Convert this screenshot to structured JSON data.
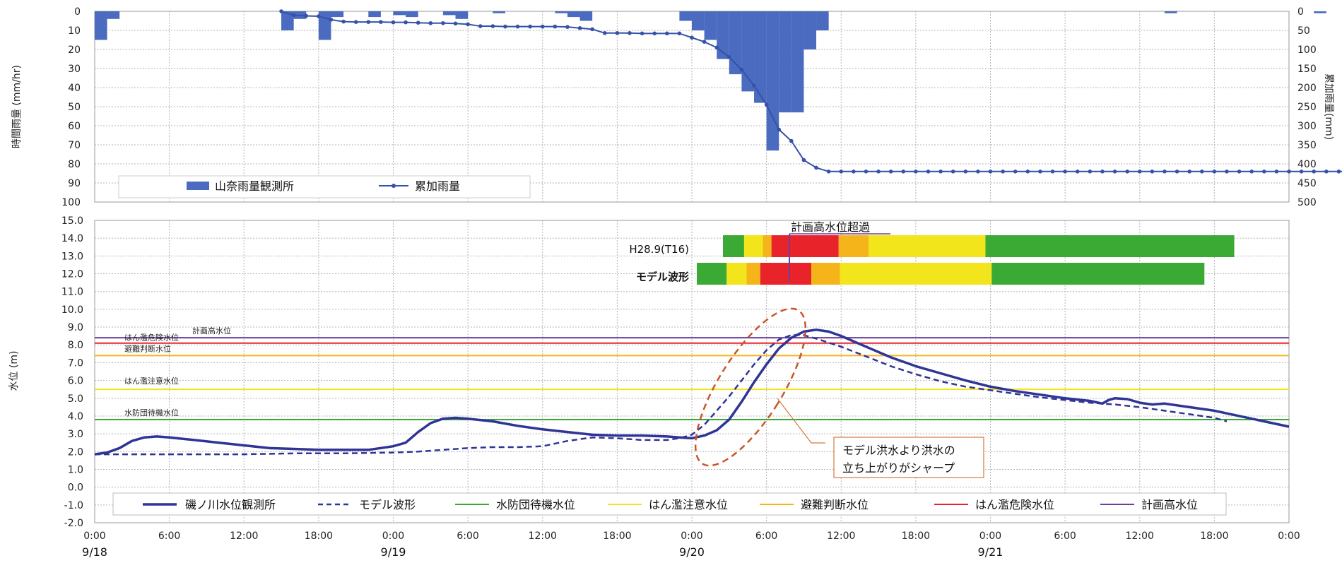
{
  "chart_data": [
    {
      "type": "bar",
      "ylabel_left": "時間雨量 (mm/hr)",
      "ylabel_right": "累加雨量(mm)",
      "ylim_left": [
        0,
        100
      ],
      "ylim_right": [
        0,
        500
      ],
      "y_inverted": true,
      "yticks_left": [
        "0",
        "10",
        "20",
        "30",
        "40",
        "50",
        "60",
        "70",
        "80",
        "90",
        "100"
      ],
      "yticks_right": [
        "0",
        "50",
        "100",
        "150",
        "200",
        "250",
        "300",
        "350",
        "400",
        "450",
        "500"
      ],
      "legend": [
        {
          "name": "山奈雨量観測所",
          "color": "#4a6bc0",
          "kind": "bar"
        },
        {
          "name": "累加雨量",
          "color": "#3552a8",
          "kind": "line-marker"
        }
      ],
      "hourly_rain": [
        [
          1,
          15
        ],
        [
          2,
          4
        ],
        [
          16,
          10
        ],
        [
          17,
          4
        ],
        [
          19,
          15
        ],
        [
          20,
          3
        ],
        [
          23,
          3
        ],
        [
          25,
          2
        ],
        [
          26,
          3
        ],
        [
          29,
          2
        ],
        [
          30,
          4
        ],
        [
          33,
          1
        ],
        [
          38,
          1
        ],
        [
          39,
          3
        ],
        [
          40,
          5
        ],
        [
          48,
          5
        ],
        [
          49,
          10
        ],
        [
          50,
          15
        ],
        [
          51,
          25
        ],
        [
          52,
          33
        ],
        [
          53,
          42
        ],
        [
          54,
          48
        ],
        [
          55,
          73
        ],
        [
          56,
          53
        ],
        [
          57,
          53
        ],
        [
          58,
          20
        ],
        [
          59,
          10
        ],
        [
          87,
          1
        ],
        [
          99,
          1
        ]
      ],
      "cumulative_rain": [
        [
          15,
          0
        ],
        [
          16,
          10
        ],
        [
          17,
          12
        ],
        [
          18,
          13
        ],
        [
          19,
          22
        ],
        [
          20,
          27
        ],
        [
          21,
          28
        ],
        [
          22,
          28
        ],
        [
          23,
          28
        ],
        [
          24,
          29
        ],
        [
          25,
          29
        ],
        [
          26,
          30
        ],
        [
          27,
          31
        ],
        [
          28,
          31
        ],
        [
          29,
          32
        ],
        [
          30,
          34
        ],
        [
          31,
          39
        ],
        [
          32,
          39
        ],
        [
          33,
          40
        ],
        [
          34,
          40
        ],
        [
          35,
          40
        ],
        [
          36,
          40
        ],
        [
          37,
          40
        ],
        [
          38,
          41
        ],
        [
          39,
          44
        ],
        [
          40,
          47
        ],
        [
          41,
          57
        ],
        [
          42,
          57
        ],
        [
          43,
          57
        ],
        [
          44,
          58
        ],
        [
          45,
          58
        ],
        [
          46,
          58
        ],
        [
          47,
          58
        ],
        [
          48,
          69
        ],
        [
          49,
          80
        ],
        [
          50,
          95
        ],
        [
          51,
          120
        ],
        [
          52,
          153
        ],
        [
          53,
          195
        ],
        [
          54,
          245
        ],
        [
          55,
          310
        ],
        [
          56,
          340
        ],
        [
          57,
          390
        ],
        [
          58,
          410
        ],
        [
          59,
          420
        ],
        [
          60,
          420
        ],
        [
          61,
          420
        ],
        [
          62,
          420
        ],
        [
          63,
          420
        ],
        [
          64,
          420
        ],
        [
          65,
          420
        ],
        [
          66,
          420
        ],
        [
          67,
          420
        ],
        [
          68,
          420
        ],
        [
          69,
          420
        ],
        [
          70,
          420
        ],
        [
          71,
          420
        ],
        [
          72,
          420
        ],
        [
          73,
          420
        ],
        [
          74,
          420
        ],
        [
          75,
          420
        ],
        [
          76,
          420
        ],
        [
          77,
          420
        ],
        [
          78,
          420
        ],
        [
          79,
          420
        ],
        [
          80,
          420
        ],
        [
          81,
          420
        ],
        [
          82,
          420
        ],
        [
          83,
          420
        ],
        [
          84,
          420
        ],
        [
          85,
          420
        ],
        [
          86,
          420
        ],
        [
          87,
          420
        ],
        [
          88,
          420
        ],
        [
          89,
          420
        ],
        [
          90,
          420
        ],
        [
          91,
          420
        ],
        [
          92,
          420
        ],
        [
          93,
          420
        ],
        [
          94,
          420
        ],
        [
          95,
          420
        ],
        [
          96,
          420
        ],
        [
          97,
          420
        ],
        [
          98,
          420
        ],
        [
          99,
          420
        ],
        [
          100,
          420
        ],
        [
          101,
          420
        ],
        [
          102,
          420
        ],
        [
          103,
          420
        ],
        [
          104,
          420
        ],
        [
          105,
          420
        ],
        [
          106,
          420
        ],
        [
          107,
          420
        ],
        [
          108,
          420
        ],
        [
          109,
          420
        ],
        [
          110,
          420
        ],
        [
          111,
          420
        ],
        [
          112,
          420
        ],
        [
          113,
          420
        ],
        [
          114,
          420
        ],
        [
          115,
          420
        ],
        [
          116,
          420
        ],
        [
          117,
          420
        ],
        [
          118,
          420
        ],
        [
          119,
          420
        ],
        [
          120,
          420
        ]
      ]
    },
    {
      "type": "line",
      "ylabel": "水位 (m)",
      "ylim": [
        -2,
        15
      ],
      "yticks": [
        "15.0",
        "14.0",
        "13.0",
        "12.0",
        "11.0",
        "10.0",
        "9.0",
        "8.0",
        "7.0",
        "6.0",
        "5.0",
        "4.0",
        "3.0",
        "2.0",
        "1.0",
        "0.0",
        "-1.0",
        "-2.0"
      ],
      "xticks": [
        "0:00",
        "6:00",
        "12:00",
        "18:00",
        "0:00",
        "6:00",
        "12:00",
        "18:00",
        "0:00",
        "6:00",
        "12:00",
        "18:00",
        "0:00",
        "6:00",
        "12:00",
        "18:00",
        "0:00"
      ],
      "xdates": [
        "9/18",
        "9/19",
        "9/20",
        "9/21"
      ],
      "xlim_hours": [
        0,
        96
      ],
      "series": [
        {
          "name": "磯ノ川水位観測所",
          "color": "#2f3596",
          "style": "solid",
          "points": [
            [
              0,
              1.85
            ],
            [
              1,
              1.95
            ],
            [
              2,
              2.2
            ],
            [
              3,
              2.6
            ],
            [
              4,
              2.8
            ],
            [
              5,
              2.85
            ],
            [
              6,
              2.8
            ],
            [
              8,
              2.65
            ],
            [
              10,
              2.5
            ],
            [
              12,
              2.35
            ],
            [
              14,
              2.2
            ],
            [
              16,
              2.15
            ],
            [
              18,
              2.1
            ],
            [
              20,
              2.1
            ],
            [
              22,
              2.1
            ],
            [
              23,
              2.2
            ],
            [
              24,
              2.3
            ],
            [
              25,
              2.5
            ],
            [
              26,
              3.1
            ],
            [
              27,
              3.6
            ],
            [
              28,
              3.85
            ],
            [
              29,
              3.9
            ],
            [
              30,
              3.85
            ],
            [
              32,
              3.7
            ],
            [
              34,
              3.45
            ],
            [
              36,
              3.25
            ],
            [
              38,
              3.1
            ],
            [
              40,
              2.95
            ],
            [
              42,
              2.9
            ],
            [
              44,
              2.9
            ],
            [
              46,
              2.85
            ],
            [
              47,
              2.8
            ],
            [
              48,
              2.75
            ],
            [
              49,
              2.9
            ],
            [
              50,
              3.2
            ],
            [
              51,
              3.8
            ],
            [
              52,
              4.8
            ],
            [
              53,
              5.9
            ],
            [
              54,
              6.9
            ],
            [
              55,
              7.8
            ],
            [
              56,
              8.4
            ],
            [
              57,
              8.75
            ],
            [
              58,
              8.85
            ],
            [
              59,
              8.75
            ],
            [
              60,
              8.5
            ],
            [
              62,
              7.9
            ],
            [
              64,
              7.3
            ],
            [
              66,
              6.8
            ],
            [
              68,
              6.4
            ],
            [
              70,
              6.0
            ],
            [
              72,
              5.65
            ],
            [
              74,
              5.4
            ],
            [
              76,
              5.2
            ],
            [
              78,
              5.0
            ],
            [
              80,
              4.85
            ],
            [
              81,
              4.7
            ],
            [
              81.5,
              4.9
            ],
            [
              82,
              5.0
            ],
            [
              83,
              4.95
            ],
            [
              84,
              4.75
            ],
            [
              85,
              4.65
            ],
            [
              86,
              4.7
            ],
            [
              88,
              4.5
            ],
            [
              90,
              4.3
            ],
            [
              92,
              4.0
            ],
            [
              94,
              3.7
            ],
            [
              96,
              3.4
            ]
          ]
        },
        {
          "name": "モデル波形",
          "color": "#2f3596",
          "style": "dashed",
          "points": [
            [
              0,
              1.85
            ],
            [
              4,
              1.85
            ],
            [
              8,
              1.85
            ],
            [
              12,
              1.85
            ],
            [
              16,
              1.9
            ],
            [
              20,
              1.9
            ],
            [
              24,
              1.95
            ],
            [
              26,
              2.0
            ],
            [
              28,
              2.1
            ],
            [
              30,
              2.2
            ],
            [
              32,
              2.25
            ],
            [
              34,
              2.25
            ],
            [
              36,
              2.3
            ],
            [
              38,
              2.6
            ],
            [
              40,
              2.8
            ],
            [
              42,
              2.75
            ],
            [
              44,
              2.65
            ],
            [
              46,
              2.65
            ],
            [
              47,
              2.75
            ],
            [
              48,
              2.95
            ],
            [
              49,
              3.5
            ],
            [
              50,
              4.3
            ],
            [
              51,
              5.1
            ],
            [
              52,
              6.0
            ],
            [
              53,
              6.9
            ],
            [
              54,
              7.7
            ],
            [
              55,
              8.3
            ],
            [
              56,
              8.55
            ],
            [
              57,
              8.55
            ],
            [
              58,
              8.35
            ],
            [
              60,
              7.9
            ],
            [
              62,
              7.35
            ],
            [
              64,
              6.8
            ],
            [
              66,
              6.35
            ],
            [
              68,
              5.95
            ],
            [
              70,
              5.65
            ],
            [
              72,
              5.45
            ],
            [
              74,
              5.25
            ],
            [
              76,
              5.05
            ],
            [
              78,
              4.9
            ],
            [
              80,
              4.75
            ],
            [
              82,
              4.65
            ],
            [
              84,
              4.5
            ],
            [
              86,
              4.3
            ],
            [
              88,
              4.1
            ],
            [
              90,
              3.9
            ],
            [
              91,
              3.7
            ]
          ]
        }
      ],
      "reference_lines": [
        {
          "name": "水防団待機水位",
          "label": "水防団待機水位",
          "value": 3.8,
          "color": "#3aaa35"
        },
        {
          "name": "はん濫注意水位",
          "label": "はん濫注意水位",
          "value": 5.5,
          "color": "#f2e51c"
        },
        {
          "name": "避難判断水位",
          "label": "避難判断水位",
          "value": 7.4,
          "color": "#f5b41a"
        },
        {
          "name": "はん濫危険水位",
          "label": "はん濫危険水位",
          "value": 8.1,
          "color": "#e8232a"
        },
        {
          "name": "計画高水位",
          "label": "計画高水位",
          "value": 8.4,
          "color": "#6b3fa0"
        }
      ],
      "legend": [
        "磯ノ川水位観測所",
        "モデル波形",
        "水防団待機水位",
        "はん濫注意水位",
        "避難判断水位",
        "はん濫危険水位",
        "計画高水位"
      ],
      "status_bars": [
        {
          "label": "H28.9(T16)",
          "segments": [
            {
              "from": 50.5,
              "to": 52.2,
              "color": "#3aaa35"
            },
            {
              "from": 52.2,
              "to": 53.7,
              "color": "#f2e51c"
            },
            {
              "from": 53.7,
              "to": 54.4,
              "color": "#f5b41a"
            },
            {
              "from": 54.4,
              "to": 59.8,
              "color": "#e8232a"
            },
            {
              "from": 59.8,
              "to": 62.2,
              "color": "#f5b41a"
            },
            {
              "from": 62.2,
              "to": 71.6,
              "color": "#f2e51c"
            },
            {
              "from": 71.6,
              "to": 91.6,
              "color": "#3aaa35"
            }
          ]
        },
        {
          "label": "モデル波形",
          "segments": [
            {
              "from": 48.4,
              "to": 50.8,
              "color": "#3aaa35"
            },
            {
              "from": 50.8,
              "to": 52.4,
              "color": "#f2e51c"
            },
            {
              "from": 52.4,
              "to": 53.5,
              "color": "#f5b41a"
            },
            {
              "from": 53.5,
              "to": 57.6,
              "color": "#e8232a"
            },
            {
              "from": 57.6,
              "to": 59.9,
              "color": "#f5b41a"
            },
            {
              "from": 59.9,
              "to": 72.1,
              "color": "#f2e51c"
            },
            {
              "from": 72.1,
              "to": 89.2,
              "color": "#3aaa35"
            }
          ]
        }
      ],
      "annotations": {
        "over_plan_label": "計画高水位超過",
        "callout_line1": "モデル洪水より洪水の",
        "callout_line2": "立ち上がりがシャープ"
      }
    }
  ]
}
